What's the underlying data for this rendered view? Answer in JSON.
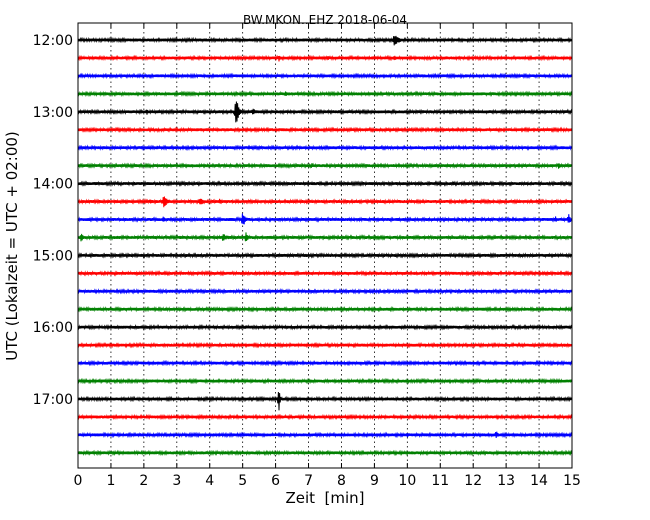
{
  "chart_data": {
    "type": "line",
    "title": "BW.MKON..EHZ 2018-06-04",
    "xlabel": "Zeit  [min]",
    "ylabel": "UTC (Lokalzeit = UTC + 02:00)",
    "xlim": [
      0,
      15
    ],
    "x_ticks": [
      "0",
      "1",
      "2",
      "3",
      "4",
      "5",
      "6",
      "7",
      "8",
      "9",
      "10",
      "11",
      "12",
      "13",
      "14",
      "15"
    ],
    "y_ticks": [
      "12:00",
      "13:00",
      "14:00",
      "15:00",
      "16:00",
      "17:00"
    ],
    "grid": true,
    "trace_interval_minutes": 15,
    "first_trace": "12:00",
    "trace_colors": [
      "#000000",
      "#ff0000",
      "#0000ff",
      "#008000"
    ],
    "rows": [
      {
        "start": "12:00",
        "color": "#000000",
        "events": [
          {
            "t": 9.6,
            "amp": 0.75,
            "dur": 0.5
          }
        ]
      },
      {
        "start": "12:15",
        "color": "#ff0000",
        "events": [
          {
            "t": 6.1,
            "amp": 0.45,
            "dur": 0.2
          },
          {
            "t": 6.6,
            "amp": 0.3,
            "dur": 0.15
          },
          {
            "t": 7.6,
            "amp": 0.3,
            "dur": 0.15
          },
          {
            "t": 9.0,
            "amp": 0.3,
            "dur": 0.15
          },
          {
            "t": 9.6,
            "amp": 0.35,
            "dur": 0.3
          }
        ]
      },
      {
        "start": "12:30",
        "color": "#0000ff",
        "events": []
      },
      {
        "start": "12:45",
        "color": "#008000",
        "events": [
          {
            "t": 6.3,
            "amp": 0.3,
            "dur": 0.4
          }
        ]
      },
      {
        "start": "13:00",
        "color": "#000000",
        "events": [
          {
            "t": 2.1,
            "amp": 0.4,
            "dur": 0.1
          },
          {
            "t": 4.8,
            "amp": 2.3,
            "dur": 0.2
          },
          {
            "t": 5.3,
            "amp": 0.45,
            "dur": 0.4
          }
        ]
      },
      {
        "start": "13:15",
        "color": "#ff0000",
        "events": []
      },
      {
        "start": "13:30",
        "color": "#0000ff",
        "events": [
          {
            "t": 2.4,
            "amp": 0.3,
            "dur": 0.2
          }
        ]
      },
      {
        "start": "13:45",
        "color": "#008000",
        "events": [
          {
            "t": 7.1,
            "amp": 0.4,
            "dur": 0.1
          },
          {
            "t": 14.6,
            "amp": 0.45,
            "dur": 0.15
          }
        ]
      },
      {
        "start": "14:00",
        "color": "#000000",
        "events": [
          {
            "t": 11.4,
            "amp": 0.25,
            "dur": 0.15
          }
        ]
      },
      {
        "start": "14:15",
        "color": "#ff0000",
        "events": [
          {
            "t": 2.2,
            "amp": 0.35,
            "dur": 0.3
          },
          {
            "t": 2.6,
            "amp": 0.75,
            "dur": 0.4
          },
          {
            "t": 3.7,
            "amp": 0.45,
            "dur": 0.5
          },
          {
            "t": 4.3,
            "amp": 0.35,
            "dur": 0.2
          }
        ]
      },
      {
        "start": "14:30",
        "color": "#0000ff",
        "events": [
          {
            "t": 2.6,
            "amp": 0.45,
            "dur": 0.15
          },
          {
            "t": 5.0,
            "amp": 0.9,
            "dur": 0.3
          },
          {
            "t": 7.5,
            "amp": 0.2,
            "dur": 0.4
          },
          {
            "t": 14.5,
            "amp": 0.4,
            "dur": 0.2
          },
          {
            "t": 14.9,
            "amp": 0.7,
            "dur": 0.2
          }
        ]
      },
      {
        "start": "14:45",
        "color": "#008000",
        "events": [
          {
            "t": 0.1,
            "amp": 0.7,
            "dur": 0.2
          },
          {
            "t": 3.2,
            "amp": 0.25,
            "dur": 0.2
          },
          {
            "t": 4.4,
            "amp": 0.45,
            "dur": 0.6
          },
          {
            "t": 5.1,
            "amp": 0.65,
            "dur": 0.2
          }
        ]
      },
      {
        "start": "15:00",
        "color": "#000000",
        "events": []
      },
      {
        "start": "15:15",
        "color": "#ff0000",
        "events": []
      },
      {
        "start": "15:30",
        "color": "#0000ff",
        "events": [
          {
            "t": 12.5,
            "amp": 0.2,
            "dur": 0.4
          },
          {
            "t": 14.5,
            "amp": 0.2,
            "dur": 0.15
          }
        ]
      },
      {
        "start": "15:45",
        "color": "#008000",
        "events": []
      },
      {
        "start": "16:00",
        "color": "#000000",
        "events": [
          {
            "t": 1.8,
            "amp": 0.2,
            "dur": 0.4
          },
          {
            "t": 5.1,
            "amp": 0.25,
            "dur": 0.5
          }
        ]
      },
      {
        "start": "16:15",
        "color": "#ff0000",
        "events": [
          {
            "t": 9.8,
            "amp": 0.2,
            "dur": 0.1
          }
        ]
      },
      {
        "start": "16:30",
        "color": "#0000ff",
        "events": [
          {
            "t": 5.0,
            "amp": 0.2,
            "dur": 0.1
          }
        ]
      },
      {
        "start": "16:45",
        "color": "#008000",
        "events": []
      },
      {
        "start": "17:00",
        "color": "#000000",
        "events": [
          {
            "t": 6.1,
            "amp": 1.6,
            "dur": 0.1
          }
        ]
      },
      {
        "start": "17:15",
        "color": "#ff0000",
        "events": [
          {
            "t": 0.2,
            "amp": 0.2,
            "dur": 0.3
          }
        ]
      },
      {
        "start": "17:30",
        "color": "#0000ff",
        "events": [
          {
            "t": 1.9,
            "amp": 0.25,
            "dur": 0.1
          },
          {
            "t": 10.0,
            "amp": 0.3,
            "dur": 0.4
          },
          {
            "t": 12.1,
            "amp": 0.25,
            "dur": 0.15
          },
          {
            "t": 12.7,
            "amp": 0.5,
            "dur": 0.2
          }
        ]
      },
      {
        "start": "17:45",
        "color": "#008000",
        "events": []
      }
    ]
  }
}
